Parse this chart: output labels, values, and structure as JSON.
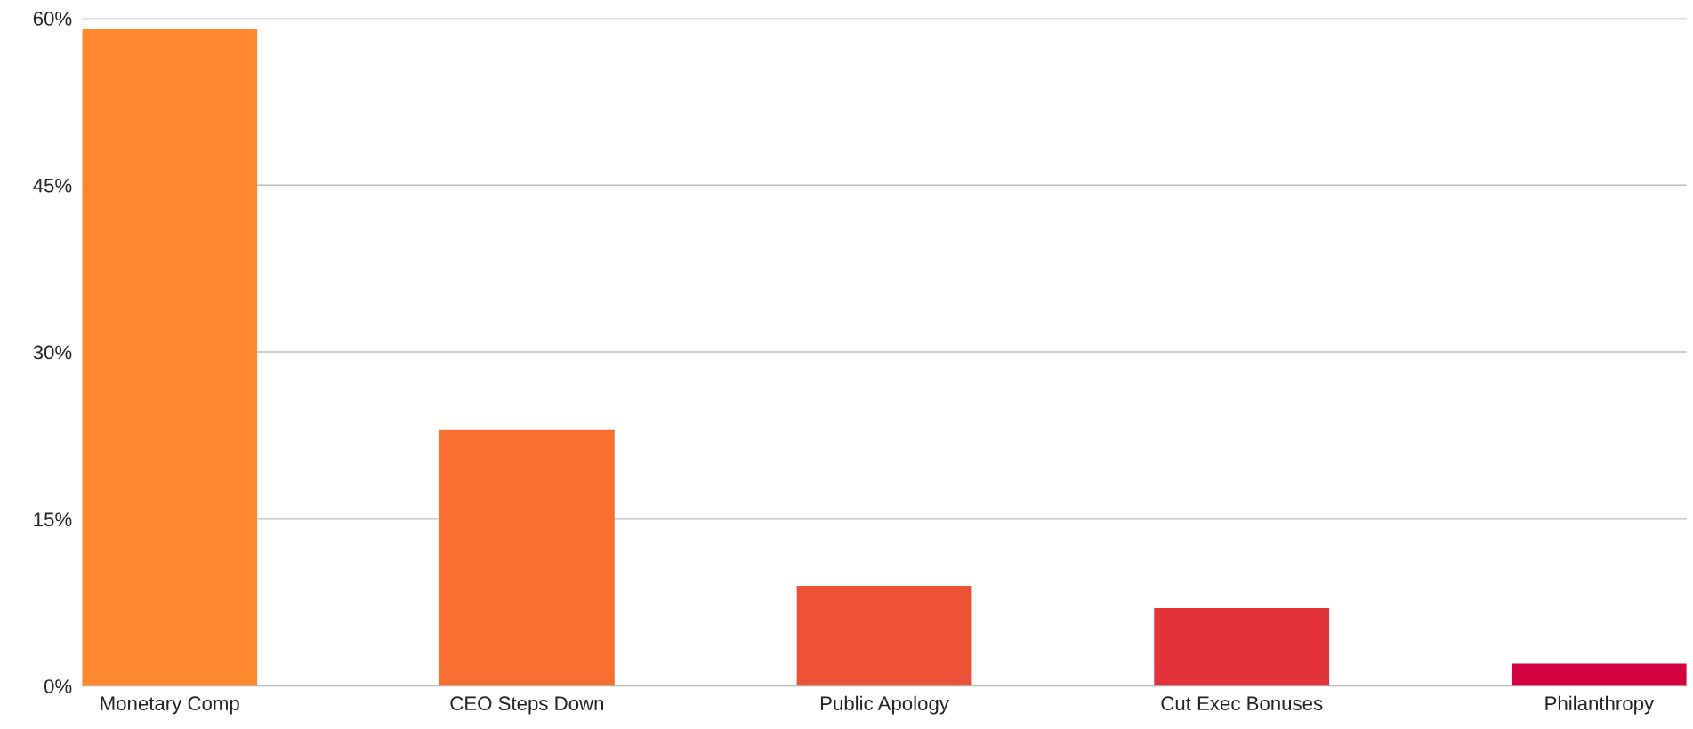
{
  "chart_data": {
    "type": "bar",
    "categories": [
      "Monetary Comp",
      "CEO Steps Down",
      "Public Apology",
      "Cut Exec Bonuses",
      "Philanthropy"
    ],
    "values": [
      59,
      23,
      9,
      7,
      2
    ],
    "colors": [
      "#ff872c",
      "#f76e31",
      "#ec5237",
      "#e2343a",
      "#d2003e"
    ],
    "ylim": [
      0,
      60
    ],
    "yticks": [
      {
        "value": 0,
        "label": "0%"
      },
      {
        "value": 15,
        "label": "15%"
      },
      {
        "value": 30,
        "label": "30%"
      },
      {
        "value": 45,
        "label": "45%"
      },
      {
        "value": 60,
        "label": "60%"
      }
    ],
    "grid": "y",
    "legend": false
  }
}
